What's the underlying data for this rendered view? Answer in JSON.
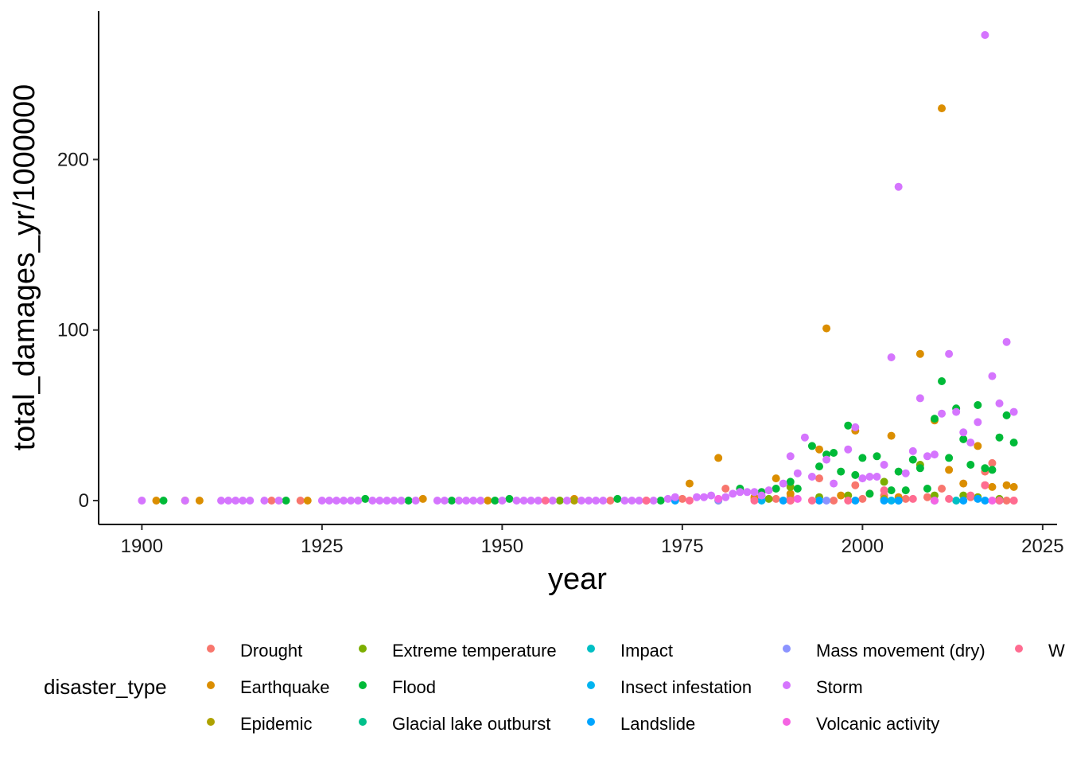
{
  "chart_data": {
    "type": "scatter",
    "xlabel": "year",
    "ylabel": "total_damages_yr/1000000",
    "xlim": [
      1894,
      2027
    ],
    "ylim": [
      -14,
      287
    ],
    "x_ticks": [
      1900,
      1925,
      1950,
      1975,
      2000,
      2025
    ],
    "y_ticks": [
      0,
      100,
      200
    ],
    "grid": false,
    "legend": {
      "title": "disaster_type",
      "position": "bottom",
      "entries": [
        {
          "name": "Drought",
          "color": "#F8766D"
        },
        {
          "name": "Earthquake",
          "color": "#DB8E00"
        },
        {
          "name": "Epidemic",
          "color": "#AEA200"
        },
        {
          "name": "Extreme temperature",
          "color": "#7CAE00"
        },
        {
          "name": "Flood",
          "color": "#00BA38"
        },
        {
          "name": "Glacial lake outburst",
          "color": "#00C08B"
        },
        {
          "name": "Impact",
          "color": "#00BFC4"
        },
        {
          "name": "Insect infestation",
          "color": "#00B4F0"
        },
        {
          "name": "Landslide",
          "color": "#00A5FF"
        },
        {
          "name": "Mass movement (dry)",
          "color": "#8B93FF"
        },
        {
          "name": "Storm",
          "color": "#D575FE"
        },
        {
          "name": "Volcanic activity",
          "color": "#F564E3"
        },
        {
          "name": "W",
          "color": "#FF6C91"
        }
      ]
    },
    "series": [
      {
        "name": "Drought",
        "color": "#F8766D",
        "points": [
          [
            1918,
            0
          ],
          [
            1922,
            0
          ],
          [
            1965,
            0
          ],
          [
            1975,
            1
          ],
          [
            1981,
            7
          ],
          [
            1985,
            1
          ],
          [
            1988,
            1
          ],
          [
            1990,
            2
          ],
          [
            1994,
            13
          ],
          [
            1996,
            0
          ],
          [
            1999,
            9
          ],
          [
            2000,
            1
          ],
          [
            2003,
            3
          ],
          [
            2006,
            1
          ],
          [
            2009,
            2
          ],
          [
            2011,
            7
          ],
          [
            2015,
            2
          ],
          [
            2017,
            17
          ],
          [
            2018,
            22
          ],
          [
            2020,
            0
          ],
          [
            2021,
            0
          ]
        ]
      },
      {
        "name": "Earthquake",
        "color": "#DB8E00",
        "points": [
          [
            1902,
            0
          ],
          [
            1906,
            0
          ],
          [
            1908,
            0
          ],
          [
            1923,
            0
          ],
          [
            1939,
            1
          ],
          [
            1948,
            0
          ],
          [
            1960,
            1
          ],
          [
            1970,
            0
          ],
          [
            1976,
            10
          ],
          [
            1980,
            25
          ],
          [
            1985,
            2
          ],
          [
            1988,
            13
          ],
          [
            1990,
            4
          ],
          [
            1994,
            30
          ],
          [
            1995,
            101
          ],
          [
            1997,
            3
          ],
          [
            1999,
            41
          ],
          [
            2001,
            4
          ],
          [
            2004,
            38
          ],
          [
            2005,
            2
          ],
          [
            2008,
            86
          ],
          [
            2010,
            47
          ],
          [
            2011,
            230
          ],
          [
            2012,
            18
          ],
          [
            2014,
            10
          ],
          [
            2016,
            32
          ],
          [
            2017,
            9
          ],
          [
            2018,
            8
          ],
          [
            2020,
            9
          ],
          [
            2021,
            8
          ]
        ]
      },
      {
        "name": "Epidemic",
        "color": "#AEA200",
        "points": [
          [
            1960,
            0
          ],
          [
            1980,
            0
          ],
          [
            1990,
            0
          ],
          [
            2003,
            1
          ]
        ]
      },
      {
        "name": "Extreme temperature",
        "color": "#7CAE00",
        "points": [
          [
            1958,
            0
          ],
          [
            1987,
            1
          ],
          [
            1990,
            8
          ],
          [
            1994,
            2
          ],
          [
            1998,
            3
          ],
          [
            2003,
            11
          ],
          [
            2008,
            21
          ],
          [
            2010,
            3
          ],
          [
            2014,
            3
          ],
          [
            2016,
            2
          ],
          [
            2019,
            1
          ]
        ]
      },
      {
        "name": "Flood",
        "color": "#00BA38",
        "points": [
          [
            1903,
            0
          ],
          [
            1920,
            0
          ],
          [
            1931,
            1
          ],
          [
            1937,
            0
          ],
          [
            1943,
            0
          ],
          [
            1949,
            0
          ],
          [
            1951,
            1
          ],
          [
            1966,
            1
          ],
          [
            1972,
            0
          ],
          [
            1983,
            7
          ],
          [
            1986,
            5
          ],
          [
            1988,
            7
          ],
          [
            1990,
            11
          ],
          [
            1991,
            7
          ],
          [
            1993,
            32
          ],
          [
            1994,
            20
          ],
          [
            1995,
            27
          ],
          [
            1996,
            28
          ],
          [
            1997,
            17
          ],
          [
            1998,
            44
          ],
          [
            1999,
            15
          ],
          [
            2000,
            25
          ],
          [
            2001,
            4
          ],
          [
            2002,
            26
          ],
          [
            2004,
            6
          ],
          [
            2005,
            17
          ],
          [
            2006,
            6
          ],
          [
            2007,
            24
          ],
          [
            2008,
            19
          ],
          [
            2009,
            7
          ],
          [
            2010,
            48
          ],
          [
            2011,
            70
          ],
          [
            2012,
            25
          ],
          [
            2013,
            54
          ],
          [
            2014,
            36
          ],
          [
            2015,
            21
          ],
          [
            2016,
            56
          ],
          [
            2017,
            19
          ],
          [
            2018,
            18
          ],
          [
            2019,
            37
          ],
          [
            2020,
            50
          ],
          [
            2021,
            34
          ]
        ]
      },
      {
        "name": "Glacial lake outburst",
        "color": "#00C08B",
        "points": [
          [
            2005,
            0
          ]
        ]
      },
      {
        "name": "Impact",
        "color": "#00BFC4",
        "points": [
          [
            2013,
            0
          ]
        ]
      },
      {
        "name": "Insect infestation",
        "color": "#00B4F0",
        "points": [
          [
            1986,
            0
          ],
          [
            2004,
            0
          ]
        ]
      },
      {
        "name": "Landslide",
        "color": "#00A5FF",
        "points": [
          [
            1974,
            0
          ],
          [
            1989,
            0
          ],
          [
            1994,
            0
          ],
          [
            1999,
            0
          ],
          [
            2003,
            0
          ],
          [
            2005,
            0
          ],
          [
            2010,
            0
          ],
          [
            2014,
            0
          ],
          [
            2016,
            1
          ],
          [
            2017,
            0
          ],
          [
            2019,
            0
          ]
        ]
      },
      {
        "name": "Mass movement (dry)",
        "color": "#8B93FF",
        "points": [
          [
            1980,
            0
          ],
          [
            1995,
            0
          ]
        ]
      },
      {
        "name": "Storm",
        "color": "#D575FE",
        "points": [
          [
            1900,
            0
          ],
          [
            1906,
            0
          ],
          [
            1911,
            0
          ],
          [
            1912,
            0
          ],
          [
            1913,
            0
          ],
          [
            1914,
            0
          ],
          [
            1915,
            0
          ],
          [
            1917,
            0
          ],
          [
            1919,
            0
          ],
          [
            1925,
            0
          ],
          [
            1926,
            0
          ],
          [
            1927,
            0
          ],
          [
            1928,
            0
          ],
          [
            1929,
            0
          ],
          [
            1930,
            0
          ],
          [
            1932,
            0
          ],
          [
            1933,
            0
          ],
          [
            1934,
            0
          ],
          [
            1935,
            0
          ],
          [
            1936,
            0
          ],
          [
            1938,
            0
          ],
          [
            1941,
            0
          ],
          [
            1942,
            0
          ],
          [
            1944,
            0
          ],
          [
            1945,
            0
          ],
          [
            1946,
            0
          ],
          [
            1947,
            0
          ],
          [
            1950,
            0
          ],
          [
            1952,
            0
          ],
          [
            1953,
            0
          ],
          [
            1954,
            0
          ],
          [
            1955,
            0
          ],
          [
            1957,
            0
          ],
          [
            1959,
            0
          ],
          [
            1961,
            0
          ],
          [
            1962,
            0
          ],
          [
            1963,
            0
          ],
          [
            1964,
            0
          ],
          [
            1967,
            0
          ],
          [
            1968,
            0
          ],
          [
            1969,
            0
          ],
          [
            1971,
            0
          ],
          [
            1973,
            1
          ],
          [
            1974,
            2
          ],
          [
            1977,
            2
          ],
          [
            1978,
            2
          ],
          [
            1979,
            3
          ],
          [
            1981,
            2
          ],
          [
            1982,
            4
          ],
          [
            1983,
            5
          ],
          [
            1984,
            5
          ],
          [
            1985,
            5
          ],
          [
            1986,
            3
          ],
          [
            1987,
            6
          ],
          [
            1989,
            10
          ],
          [
            1990,
            26
          ],
          [
            1991,
            16
          ],
          [
            1992,
            37
          ],
          [
            1993,
            14
          ],
          [
            1995,
            24
          ],
          [
            1996,
            10
          ],
          [
            1998,
            30
          ],
          [
            1999,
            43
          ],
          [
            2000,
            13
          ],
          [
            2001,
            14
          ],
          [
            2002,
            14
          ],
          [
            2003,
            21
          ],
          [
            2004,
            84
          ],
          [
            2005,
            184
          ],
          [
            2006,
            16
          ],
          [
            2007,
            29
          ],
          [
            2008,
            60
          ],
          [
            2009,
            26
          ],
          [
            2010,
            27
          ],
          [
            2011,
            51
          ],
          [
            2012,
            86
          ],
          [
            2013,
            52
          ],
          [
            2014,
            40
          ],
          [
            2015,
            34
          ],
          [
            2016,
            46
          ],
          [
            2017,
            273
          ],
          [
            2018,
            73
          ],
          [
            2019,
            57
          ],
          [
            2020,
            93
          ],
          [
            2021,
            52
          ]
        ]
      },
      {
        "name": "Volcanic activity",
        "color": "#F564E3",
        "points": [
          [
            1980,
            1
          ],
          [
            1991,
            1
          ],
          [
            2010,
            0
          ],
          [
            2018,
            0
          ]
        ]
      },
      {
        "name": "W",
        "color": "#FF6C91",
        "points": [
          [
            1956,
            0
          ],
          [
            1970,
            0
          ],
          [
            1976,
            0
          ],
          [
            1985,
            0
          ],
          [
            1990,
            0
          ],
          [
            1993,
            0
          ],
          [
            1998,
            0
          ],
          [
            2003,
            6
          ],
          [
            2007,
            1
          ],
          [
            2012,
            1
          ],
          [
            2015,
            3
          ],
          [
            2017,
            9
          ],
          [
            2019,
            0
          ],
          [
            2021,
            0
          ]
        ]
      }
    ]
  }
}
